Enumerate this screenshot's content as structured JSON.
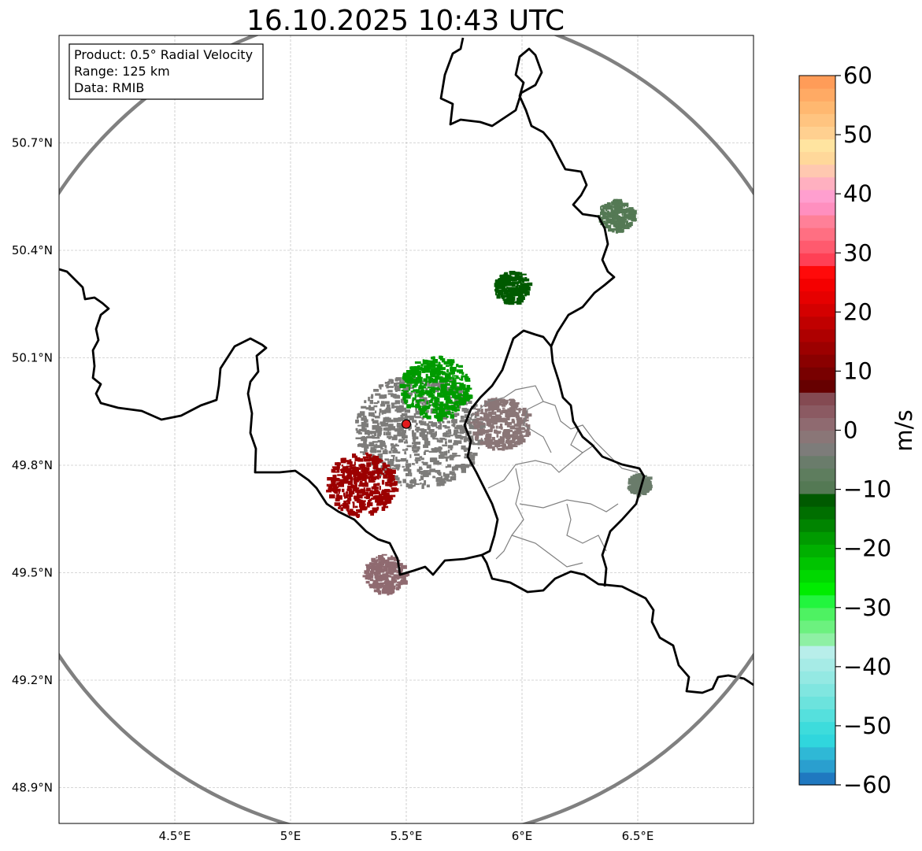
{
  "figure": {
    "title": "16.10.2025 10:43 UTC"
  },
  "info_box": {
    "product": "Product: 0.5° Radial Velocity",
    "range": "Range: 125 km",
    "data_source": "Data: RMIB"
  },
  "map": {
    "lon_range": [
      4.0,
      7.0
    ],
    "lat_range": [
      48.8,
      51.0
    ],
    "radar_site": {
      "lon": 5.5,
      "lat": 49.915
    },
    "range_ring_km": 125,
    "x_ticks": [
      {
        "value": 4.5,
        "label": "4.5°E"
      },
      {
        "value": 5.0,
        "label": "5°E"
      },
      {
        "value": 5.5,
        "label": "5.5°E"
      },
      {
        "value": 6.0,
        "label": "6°E"
      },
      {
        "value": 6.5,
        "label": "6.5°E"
      }
    ],
    "y_ticks": [
      {
        "value": 50.7,
        "label": "50.7°N"
      },
      {
        "value": 50.4,
        "label": "50.4°N"
      },
      {
        "value": 50.1,
        "label": "50.1°N"
      },
      {
        "value": 49.8,
        "label": "49.8°N"
      },
      {
        "value": 49.5,
        "label": "49.5°N"
      },
      {
        "value": 49.2,
        "label": "49.2°N"
      },
      {
        "value": 48.9,
        "label": "48.9°N"
      }
    ],
    "colors": {
      "border": "#000000",
      "admin_border": "#808080",
      "ring": "#808080",
      "grid": "#b0b0b0",
      "radar_marker": "#e31a1c"
    }
  },
  "colorbar": {
    "label": "m/s",
    "min": -60,
    "max": 60,
    "tick_values": [
      60,
      50,
      40,
      30,
      20,
      10,
      0,
      -10,
      -20,
      -30,
      -40,
      -50,
      -60
    ],
    "tick_labels": [
      "60",
      "50",
      "40",
      "30",
      "20",
      "10",
      "0",
      "−10",
      "−20",
      "−30",
      "−40",
      "−50",
      "−60"
    ],
    "band_colors": [
      "#1f78c0",
      "#2a9fcf",
      "#2fb8d6",
      "#30d6dd",
      "#3ddcdc",
      "#55e0dd",
      "#6ce3dd",
      "#80e6e0",
      "#94e9e3",
      "#a6ebe6",
      "#b8eeea",
      "#8ef0a4",
      "#6cf17f",
      "#4ef262",
      "#22f53e",
      "#00ec00",
      "#00d800",
      "#00c400",
      "#00b000",
      "#009b00",
      "#008400",
      "#006f00",
      "#005a00",
      "#547954",
      "#5e7d5e",
      "#6a7c6b",
      "#7d7c7a",
      "#8a7677",
      "#8f6a70",
      "#8b5a62",
      "#844a52",
      "#660000",
      "#780000",
      "#8a0000",
      "#9c0000",
      "#ae0000",
      "#c00000",
      "#d40000",
      "#e60000",
      "#f40000",
      "#ff0a0a",
      "#ff4055",
      "#ff5a6e",
      "#ff6f82",
      "#ff8098",
      "#ff8fbf",
      "#ff9fcf",
      "#ffb0c0",
      "#ffc8b0",
      "#ffd89a",
      "#ffe4a0",
      "#ffd090",
      "#ffc480",
      "#ffb870",
      "#ffaa64",
      "#ff9c58"
    ]
  },
  "echo_cells": [
    {
      "lon": 5.55,
      "lat": 49.9,
      "size_deg": 0.55,
      "color": "#7d7c7a"
    },
    {
      "lon": 5.62,
      "lat": 50.02,
      "size_deg": 0.3,
      "color": "#009b00"
    },
    {
      "lon": 5.3,
      "lat": 49.75,
      "size_deg": 0.3,
      "color": "#9c0000"
    },
    {
      "lon": 5.95,
      "lat": 50.3,
      "size_deg": 0.15,
      "color": "#005a00"
    },
    {
      "lon": 5.9,
      "lat": 49.92,
      "size_deg": 0.25,
      "color": "#8a7677"
    },
    {
      "lon": 5.4,
      "lat": 49.5,
      "size_deg": 0.18,
      "color": "#8f6a70"
    },
    {
      "lon": 6.4,
      "lat": 50.5,
      "size_deg": 0.15,
      "color": "#547954"
    },
    {
      "lon": 6.5,
      "lat": 49.75,
      "size_deg": 0.1,
      "color": "#6a7c6b"
    }
  ]
}
